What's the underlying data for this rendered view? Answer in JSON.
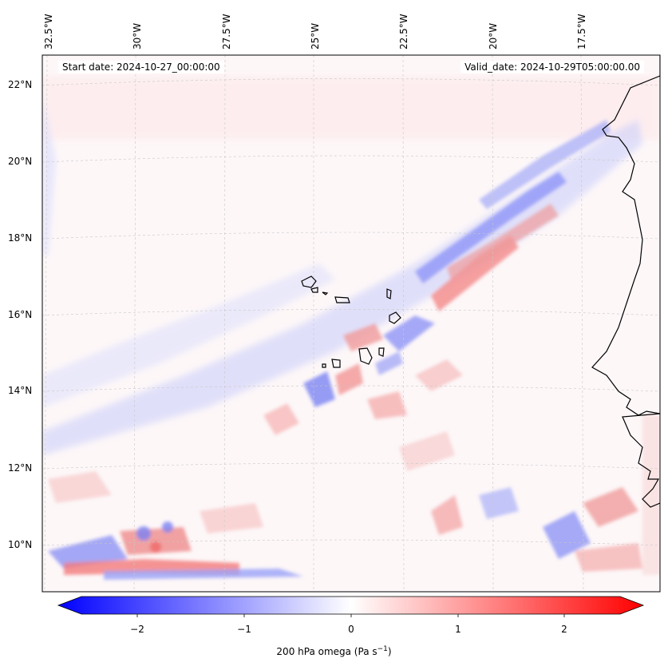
{
  "map": {
    "start_date": "Start date: 2024-10-27_00:00:00",
    "valid_date": "Valid_date: 2024-10-29T05:00:00.00",
    "lon_labels": [
      "32.5°W",
      "30°W",
      "27.5°W",
      "25°W",
      "22.5°W",
      "20°W",
      "17.5°W"
    ],
    "lat_labels": [
      "22°N",
      "20°N",
      "18°N",
      "16°N",
      "14°N",
      "12°N",
      "10°N"
    ],
    "coastline_color": "#000000",
    "gridline_color": "#c8c8c8"
  },
  "colorbar": {
    "ticks": [
      "−2",
      "−1",
      "0",
      "1",
      "2"
    ],
    "label": "200 hPa omega (Pa s",
    "label_sup": "−1",
    "label_end": ")",
    "colormap": "bwr",
    "min_color": "#0000ff",
    "mid_color": "#ffffff",
    "max_color": "#ff0000"
  }
}
